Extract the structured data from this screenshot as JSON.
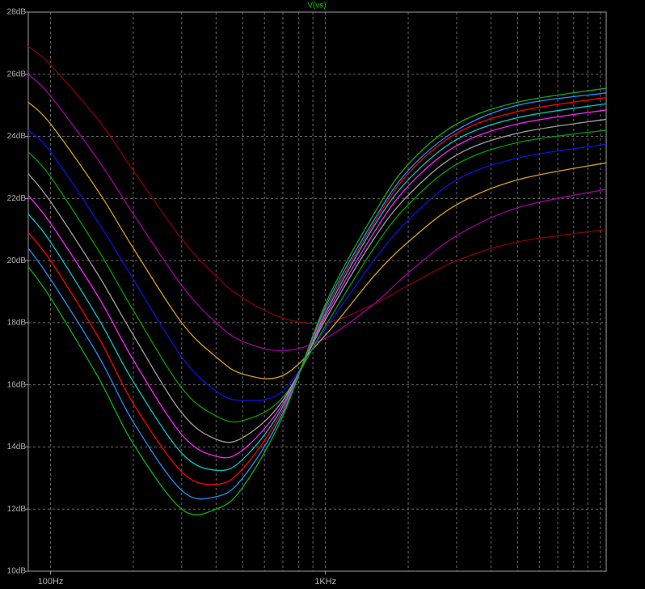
{
  "chart_data": {
    "type": "line",
    "title": "V(vs)",
    "log_x": true,
    "grid": true,
    "x": [
      83,
      100,
      150,
      200,
      300,
      400,
      500,
      700,
      1000,
      1500,
      2000,
      3000,
      5000,
      10500
    ],
    "xlim": [
      83,
      10500
    ],
    "xticks": [
      {
        "value": 100,
        "label": "100Hz"
      },
      {
        "value": 1000,
        "label": "1KHz"
      }
    ],
    "x_minor_gridlines": [
      200,
      300,
      400,
      500,
      600,
      700,
      800,
      900,
      2000,
      3000,
      4000,
      5000,
      6000,
      7000,
      8000,
      9000,
      10000
    ],
    "ylim": [
      10,
      28
    ],
    "yticks": [
      {
        "value": 10,
        "label": "10dB"
      },
      {
        "value": 12,
        "label": "12dB"
      },
      {
        "value": 14,
        "label": "14dB"
      },
      {
        "value": 16,
        "label": "16dB"
      },
      {
        "value": 18,
        "label": "18dB"
      },
      {
        "value": 20,
        "label": "20dB"
      },
      {
        "value": 22,
        "label": "22dB"
      },
      {
        "value": 24,
        "label": "24dB"
      },
      {
        "value": 26,
        "label": "26dB"
      },
      {
        "value": 28,
        "label": "28dB"
      }
    ],
    "series": [
      {
        "color": "#8b0000",
        "values": [
          26.9,
          26.3,
          24.5,
          22.9,
          20.7,
          19.5,
          18.8,
          18.15,
          18.0,
          18.6,
          19.2,
          20.0,
          20.6,
          21.0
        ]
      },
      {
        "color": "#a000a0",
        "values": [
          26.0,
          25.3,
          23.2,
          21.5,
          19.2,
          18.0,
          17.4,
          17.1,
          17.5,
          18.6,
          19.6,
          20.8,
          21.7,
          22.3
        ]
      },
      {
        "color": "#d4a017",
        "values": [
          25.1,
          24.4,
          22.2,
          20.4,
          18.0,
          16.9,
          16.35,
          16.3,
          17.6,
          19.5,
          20.6,
          21.8,
          22.6,
          23.15
        ]
      },
      {
        "color": "#1010e0",
        "values": [
          24.2,
          23.5,
          21.2,
          19.4,
          16.9,
          15.8,
          15.5,
          15.8,
          17.8,
          20.0,
          21.3,
          22.6,
          23.3,
          23.75
        ]
      },
      {
        "color": "#00a000",
        "values": [
          23.5,
          22.7,
          20.3,
          18.4,
          15.9,
          15.0,
          14.85,
          15.6,
          17.9,
          20.4,
          21.8,
          23.1,
          23.8,
          24.2
        ]
      },
      {
        "color": "#a0a0a0",
        "values": [
          22.8,
          21.9,
          19.5,
          17.6,
          15.1,
          14.25,
          14.3,
          15.5,
          18.1,
          20.7,
          22.1,
          23.4,
          24.1,
          24.55
        ]
      },
      {
        "color": "#ff20ff",
        "values": [
          22.1,
          21.2,
          18.8,
          16.8,
          14.4,
          13.7,
          13.9,
          15.4,
          18.2,
          20.9,
          22.4,
          23.7,
          24.4,
          24.85
        ]
      },
      {
        "color": "#00c8c8",
        "values": [
          21.5,
          20.6,
          18.1,
          16.1,
          13.8,
          13.25,
          13.6,
          15.3,
          18.3,
          21.1,
          22.6,
          23.9,
          24.6,
          25.05
        ]
      },
      {
        "color": "#ff0000",
        "values": [
          20.9,
          20.0,
          17.5,
          15.4,
          13.2,
          12.8,
          13.3,
          15.2,
          18.4,
          21.2,
          22.8,
          24.1,
          24.8,
          25.25
        ]
      },
      {
        "color": "#2090ff",
        "values": [
          20.4,
          19.4,
          16.9,
          14.8,
          12.6,
          12.4,
          13.0,
          15.1,
          18.5,
          21.3,
          22.9,
          24.2,
          25.0,
          25.4
        ]
      },
      {
        "color": "#10b010",
        "values": [
          19.8,
          18.8,
          16.2,
          14.1,
          12.0,
          12.0,
          12.7,
          15.0,
          18.6,
          21.5,
          23.1,
          24.4,
          25.1,
          25.55
        ]
      }
    ]
  }
}
